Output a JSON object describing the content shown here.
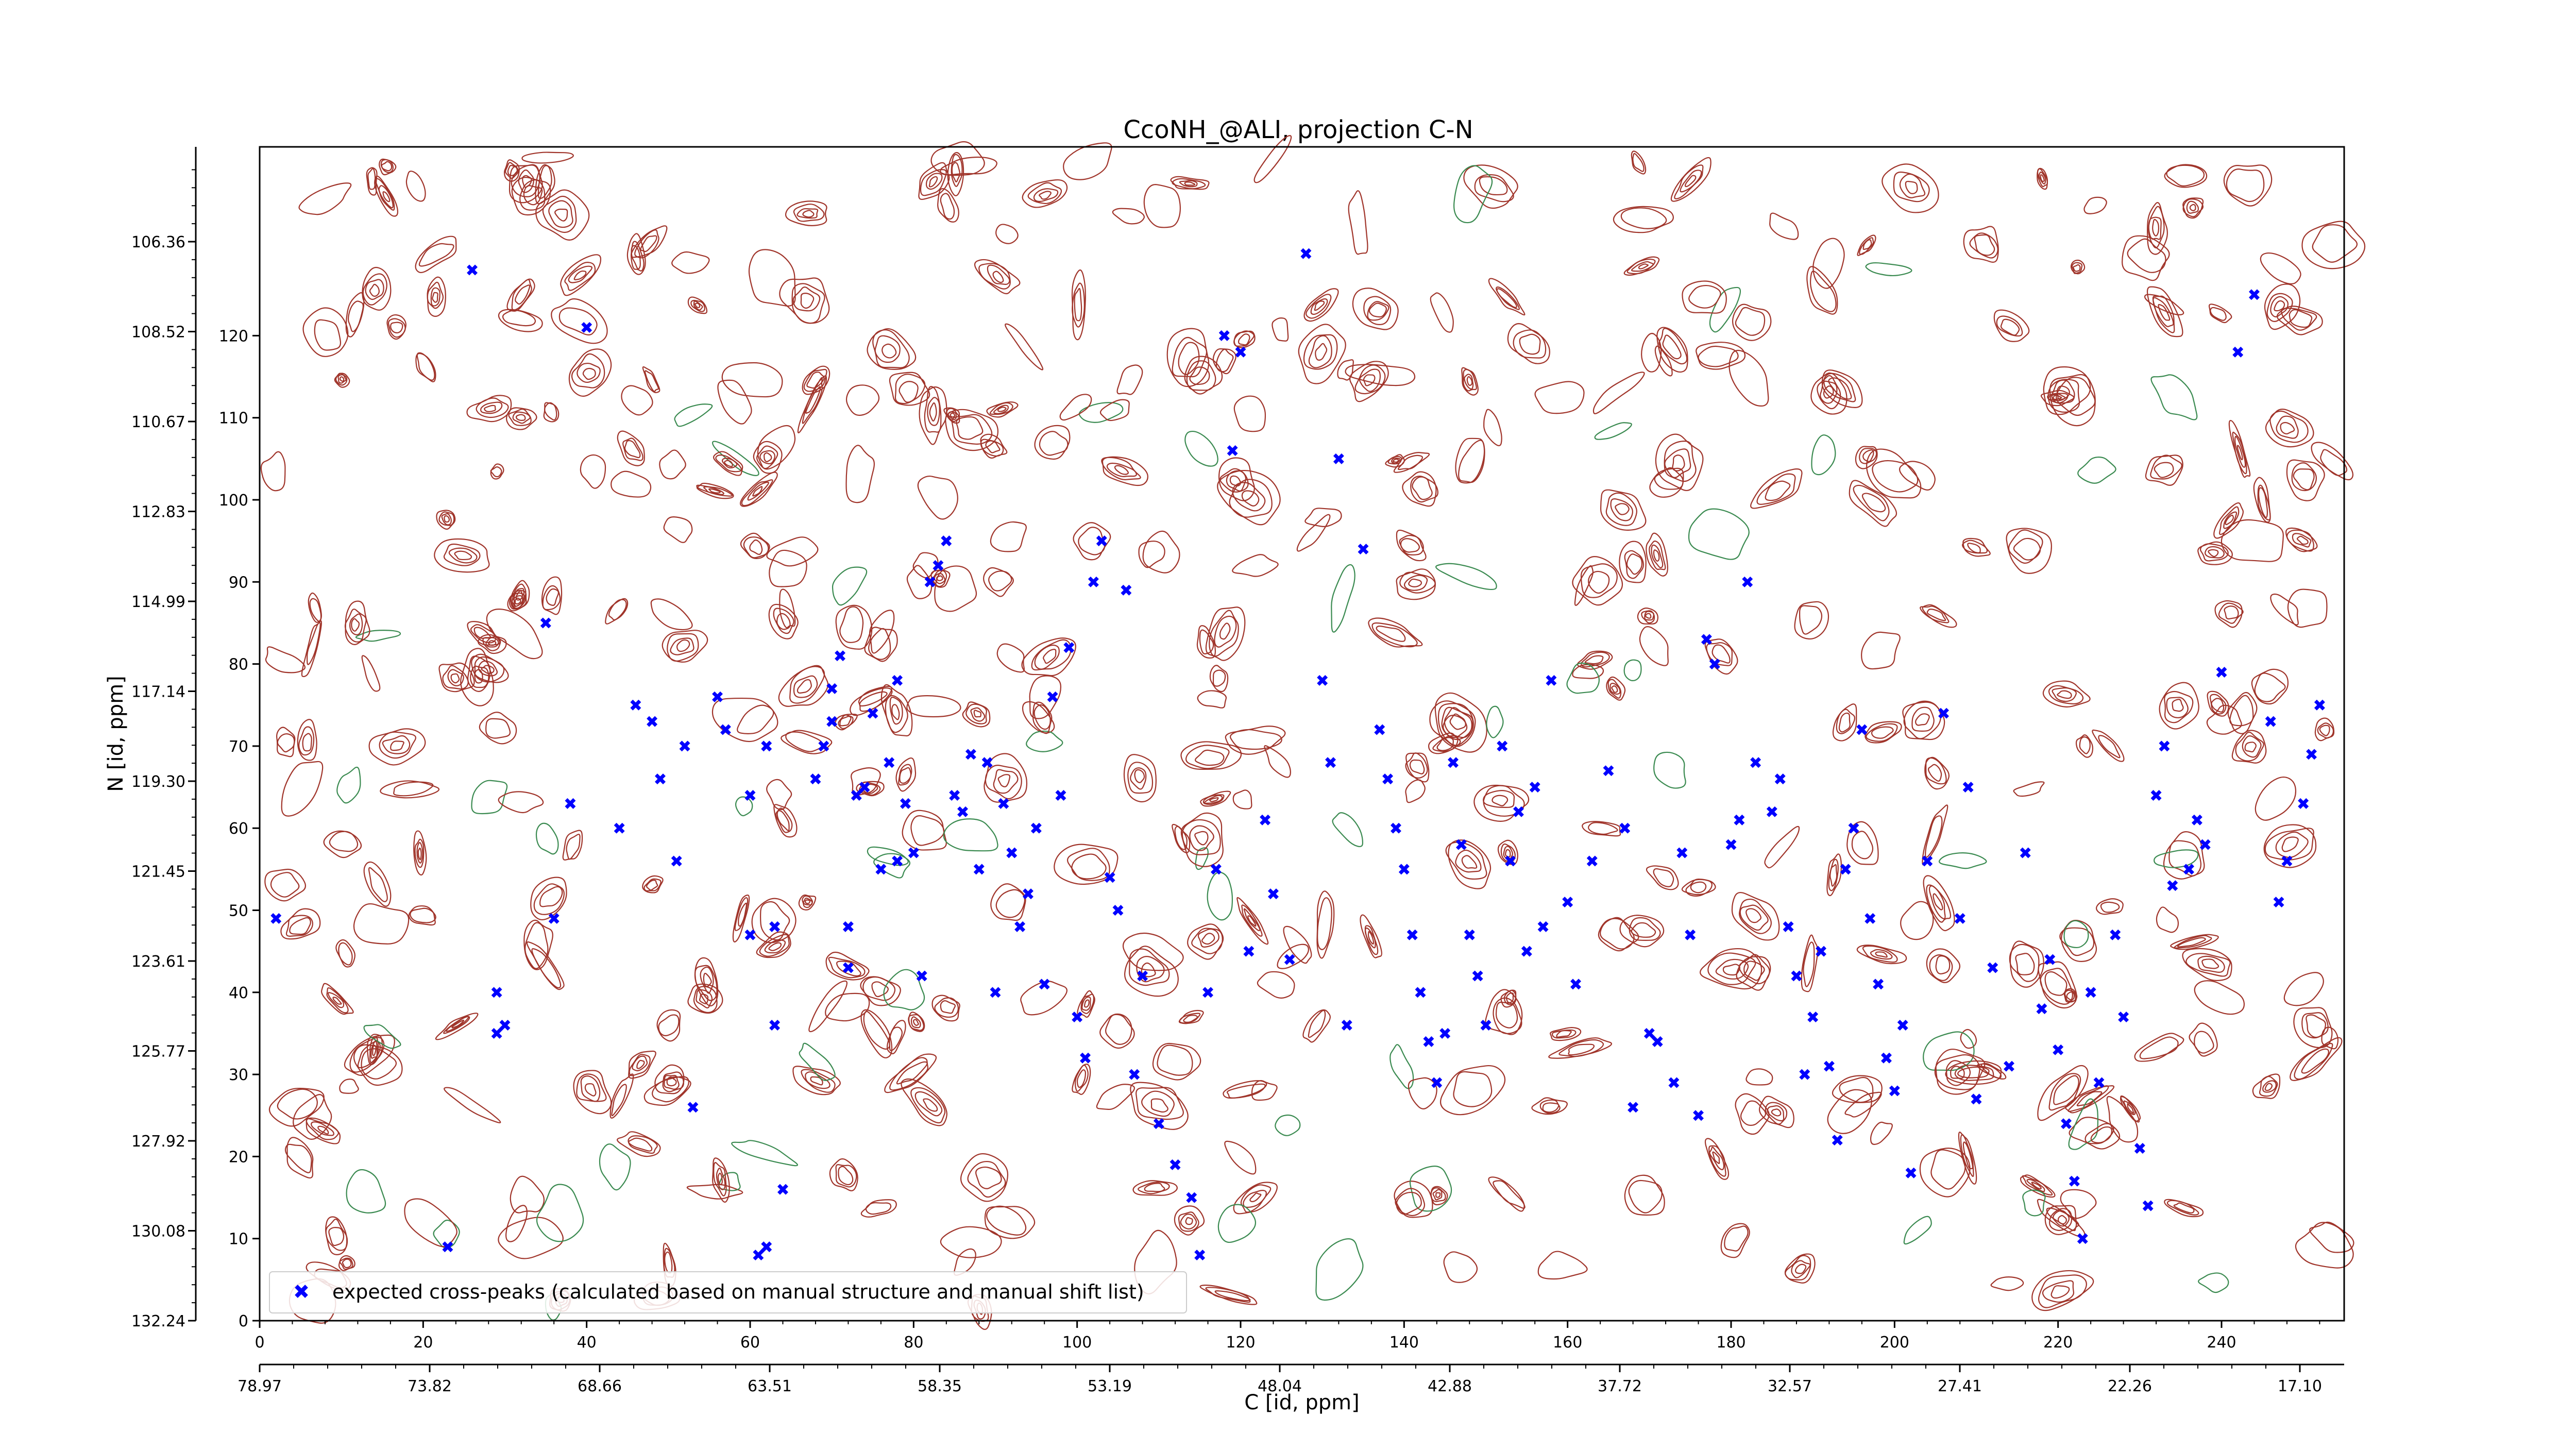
{
  "chart_data": {
    "type": "scatter",
    "title": "CcoNH_@ALI, projection C-N",
    "xlabel": "C [id, ppm]",
    "ylabel": "N [id, ppm]",
    "xlim": [
      0,
      255
    ],
    "ylim": [
      0,
      143
    ],
    "grid": false,
    "legend_position": "lower-left",
    "bottom_x_ticks": [
      "0",
      "20",
      "40",
      "60",
      "80",
      "100",
      "120",
      "140",
      "160",
      "180",
      "200",
      "220",
      "240"
    ],
    "bottom_x_tick_values": [
      0,
      20,
      40,
      60,
      80,
      100,
      120,
      140,
      160,
      180,
      200,
      220,
      240
    ],
    "secondary_x_ticks": [
      "78.97",
      "73.82",
      "68.66",
      "63.51",
      "58.35",
      "53.19",
      "48.04",
      "42.88",
      "37.72",
      "32.57",
      "27.41",
      "22.26",
      "17.10"
    ],
    "left_y_ticks": [
      "0",
      "10",
      "20",
      "30",
      "40",
      "50",
      "60",
      "70",
      "80",
      "90",
      "100",
      "110",
      "120"
    ],
    "left_y_tick_values": [
      0,
      10,
      20,
      30,
      40,
      50,
      60,
      70,
      80,
      90,
      100,
      110,
      120
    ],
    "secondary_y_ticks": [
      "132.24",
      "130.08",
      "127.92",
      "125.77",
      "123.61",
      "121.45",
      "119.30",
      "117.14",
      "114.99",
      "112.83",
      "110.67",
      "108.52",
      "106.36"
    ],
    "secondary_y_tick_values": [
      0,
      17.8,
      35.6,
      53.4,
      71.2,
      89.0,
      106.8,
      124.6,
      142.4,
      160.2,
      178.0,
      195.8,
      213.6
    ],
    "colors": {
      "expected_marker": "#0000ff",
      "contour_positive": "#a0342a",
      "contour_negative": "#3a8a50"
    },
    "series": [
      {
        "name": "expected cross-peaks (calculated based on manual structure and manual shift list)",
        "marker": "x",
        "points": [
          [
            2,
            49
          ],
          [
            23,
            9
          ],
          [
            29,
            40
          ],
          [
            30,
            36
          ],
          [
            29,
            35
          ],
          [
            26,
            128
          ],
          [
            35,
            85
          ],
          [
            36,
            49
          ],
          [
            38,
            63
          ],
          [
            40,
            121
          ],
          [
            44,
            60
          ],
          [
            46,
            75
          ],
          [
            48,
            73
          ],
          [
            49,
            66
          ],
          [
            51,
            56
          ],
          [
            52,
            70
          ],
          [
            53,
            26
          ],
          [
            56,
            76
          ],
          [
            57,
            72
          ],
          [
            60,
            64
          ],
          [
            62,
            70
          ],
          [
            63,
            36
          ],
          [
            60,
            47
          ],
          [
            63,
            48
          ],
          [
            64,
            16
          ],
          [
            61,
            8
          ],
          [
            62,
            9
          ],
          [
            68,
            66
          ],
          [
            69,
            70
          ],
          [
            70,
            73
          ],
          [
            70,
            77
          ],
          [
            71,
            81
          ],
          [
            72,
            43
          ],
          [
            72,
            48
          ],
          [
            73,
            64
          ],
          [
            74,
            65
          ],
          [
            75,
            74
          ],
          [
            76,
            55
          ],
          [
            77,
            68
          ],
          [
            78,
            78
          ],
          [
            78,
            56
          ],
          [
            79,
            63
          ],
          [
            80,
            57
          ],
          [
            81,
            42
          ],
          [
            82,
            90
          ],
          [
            83,
            92
          ],
          [
            84,
            95
          ],
          [
            85,
            64
          ],
          [
            86,
            62
          ],
          [
            87,
            69
          ],
          [
            88,
            55
          ],
          [
            89,
            68
          ],
          [
            90,
            40
          ],
          [
            91,
            63
          ],
          [
            92,
            57
          ],
          [
            93,
            48
          ],
          [
            94,
            52
          ],
          [
            95,
            60
          ],
          [
            96,
            41
          ],
          [
            97,
            76
          ],
          [
            98,
            64
          ],
          [
            99,
            82
          ],
          [
            100,
            37
          ],
          [
            101,
            32
          ],
          [
            102,
            90
          ],
          [
            103,
            95
          ],
          [
            104,
            54
          ],
          [
            105,
            50
          ],
          [
            106,
            89
          ],
          [
            107,
            30
          ],
          [
            108,
            42
          ],
          [
            110,
            24
          ],
          [
            112,
            19
          ],
          [
            114,
            15
          ],
          [
            115,
            8
          ],
          [
            116,
            40
          ],
          [
            117,
            55
          ],
          [
            118,
            120
          ],
          [
            119,
            106
          ],
          [
            120,
            118
          ],
          [
            121,
            45
          ],
          [
            123,
            61
          ],
          [
            124,
            52
          ],
          [
            126,
            44
          ],
          [
            128,
            130
          ],
          [
            130,
            78
          ],
          [
            131,
            68
          ],
          [
            132,
            105
          ],
          [
            133,
            36
          ],
          [
            135,
            94
          ],
          [
            137,
            72
          ],
          [
            138,
            66
          ],
          [
            139,
            60
          ],
          [
            140,
            55
          ],
          [
            141,
            47
          ],
          [
            142,
            40
          ],
          [
            143,
            34
          ],
          [
            144,
            29
          ],
          [
            145,
            35
          ],
          [
            146,
            68
          ],
          [
            147,
            58
          ],
          [
            148,
            47
          ],
          [
            149,
            42
          ],
          [
            150,
            36
          ],
          [
            152,
            70
          ],
          [
            153,
            56
          ],
          [
            154,
            62
          ],
          [
            155,
            45
          ],
          [
            156,
            65
          ],
          [
            157,
            48
          ],
          [
            158,
            78
          ],
          [
            160,
            51
          ],
          [
            161,
            41
          ],
          [
            163,
            56
          ],
          [
            165,
            67
          ],
          [
            167,
            60
          ],
          [
            168,
            26
          ],
          [
            170,
            35
          ],
          [
            171,
            34
          ],
          [
            173,
            29
          ],
          [
            174,
            57
          ],
          [
            175,
            47
          ],
          [
            176,
            25
          ],
          [
            177,
            83
          ],
          [
            178,
            80
          ],
          [
            180,
            58
          ],
          [
            181,
            61
          ],
          [
            182,
            90
          ],
          [
            183,
            68
          ],
          [
            185,
            62
          ],
          [
            186,
            66
          ],
          [
            187,
            48
          ],
          [
            188,
            42
          ],
          [
            189,
            30
          ],
          [
            190,
            37
          ],
          [
            191,
            45
          ],
          [
            192,
            31
          ],
          [
            193,
            22
          ],
          [
            194,
            55
          ],
          [
            195,
            60
          ],
          [
            196,
            72
          ],
          [
            197,
            49
          ],
          [
            198,
            41
          ],
          [
            199,
            32
          ],
          [
            200,
            28
          ],
          [
            201,
            36
          ],
          [
            202,
            18
          ],
          [
            204,
            56
          ],
          [
            206,
            74
          ],
          [
            208,
            49
          ],
          [
            209,
            65
          ],
          [
            210,
            27
          ],
          [
            212,
            43
          ],
          [
            214,
            31
          ],
          [
            216,
            57
          ],
          [
            218,
            38
          ],
          [
            219,
            44
          ],
          [
            220,
            33
          ],
          [
            221,
            24
          ],
          [
            222,
            17
          ],
          [
            223,
            10
          ],
          [
            224,
            40
          ],
          [
            225,
            29
          ],
          [
            227,
            47
          ],
          [
            228,
            37
          ],
          [
            230,
            21
          ],
          [
            231,
            14
          ],
          [
            232,
            64
          ],
          [
            233,
            70
          ],
          [
            234,
            53
          ],
          [
            236,
            55
          ],
          [
            237,
            61
          ],
          [
            238,
            58
          ],
          [
            240,
            79
          ],
          [
            242,
            118
          ],
          [
            244,
            125
          ],
          [
            246,
            73
          ],
          [
            247,
            51
          ],
          [
            248,
            56
          ],
          [
            250,
            63
          ],
          [
            251,
            69
          ],
          [
            252,
            75
          ]
        ]
      }
    ]
  },
  "legend": {
    "label": "expected cross-peaks (calculated based on manual structure and manual shift list)"
  }
}
